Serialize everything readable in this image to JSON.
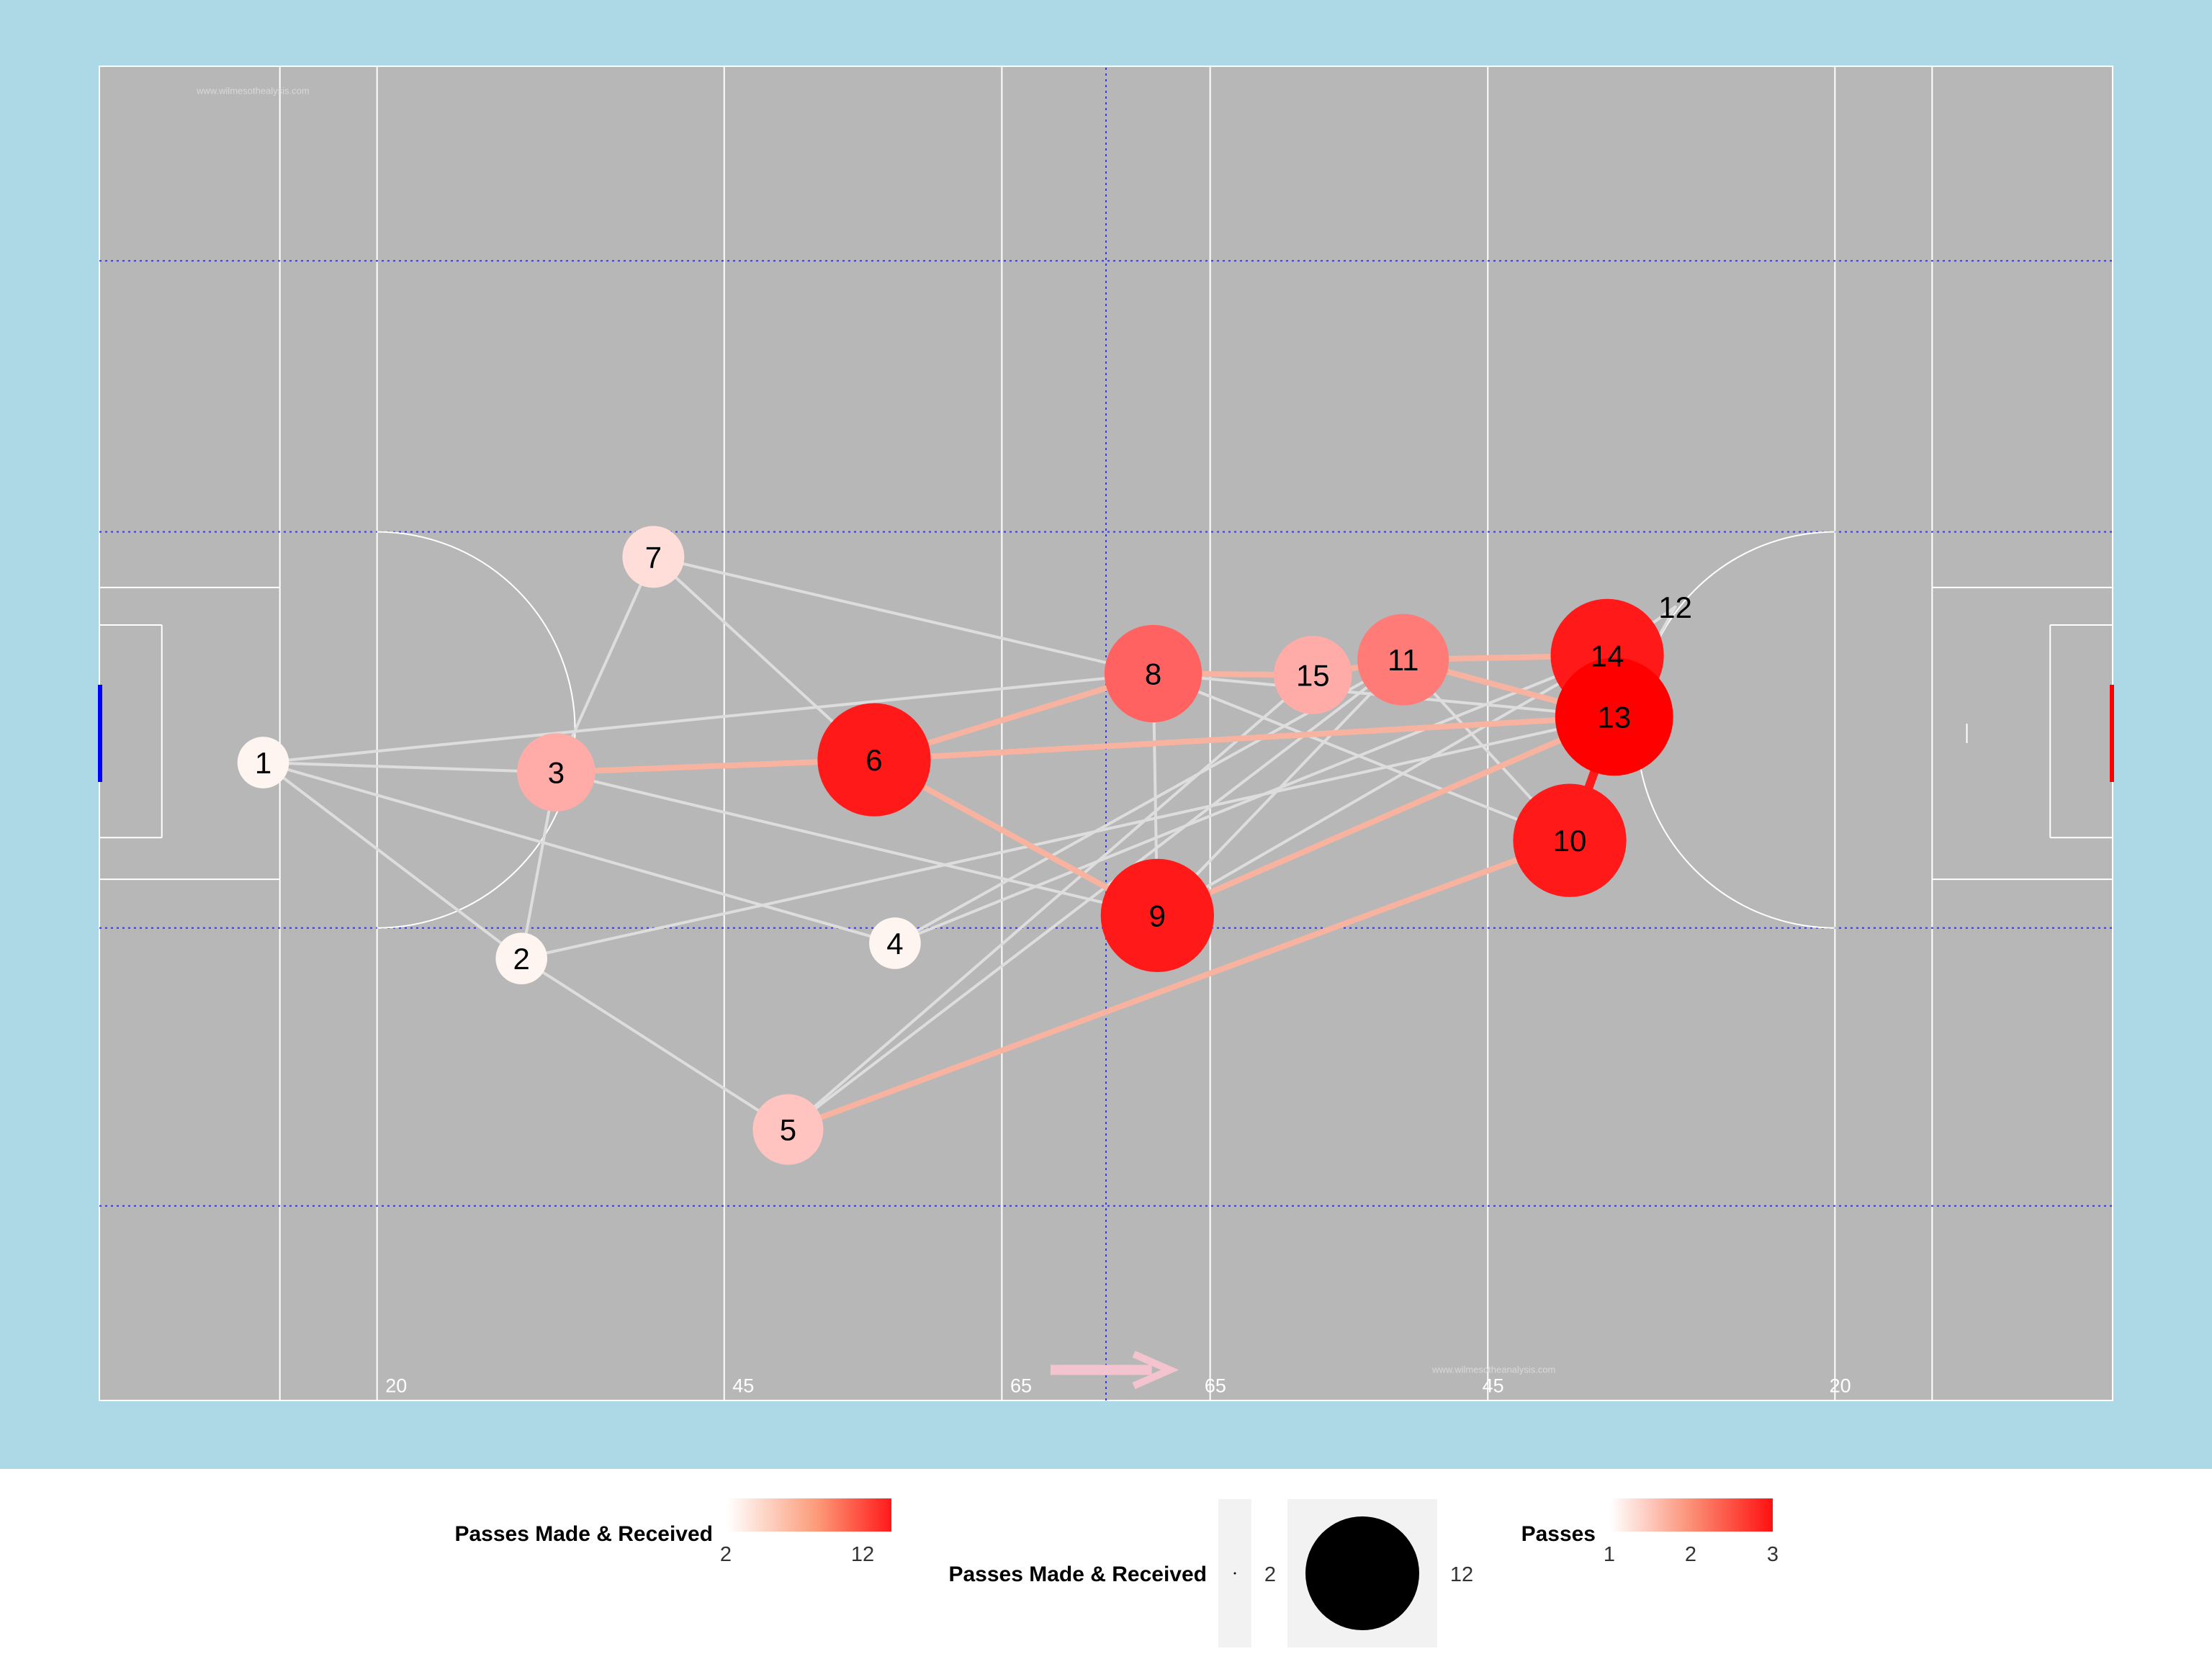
{
  "chart_data": {
    "type": "network",
    "background_color": "#add8e6",
    "pitch_color": "#b7b7b7",
    "attack_arrow_color": "#f3c4cf",
    "own_goal_color": "#0000ff",
    "opponent_goal_color": "#ff0000",
    "node_color_low": "#fff5f0",
    "node_color_high": "#ff0000",
    "edge_color_low": "#dddddd",
    "edge_color_high": "#ff1a1a",
    "watermark": "www.wilmesothealysis.com",
    "watermark_2": "www.wilmesotheanalysis.com",
    "yard_lines": {
      "left_20": "20",
      "left_45": "45",
      "left_65": "65",
      "right_65": "65",
      "right_45": "45",
      "right_20": "20"
    },
    "x_range": [
      0,
      145
    ],
    "y_range": [
      0,
      96
    ],
    "nodes": [
      {
        "id": "1",
        "x": 11.8,
        "y": 45.9,
        "passes_made_received": 2
      },
      {
        "id": "2",
        "x": 30.4,
        "y": 31.8,
        "passes_made_received": 2
      },
      {
        "id": "3",
        "x": 32.9,
        "y": 45.2,
        "passes_made_received": 5
      },
      {
        "id": "4",
        "x": 57.3,
        "y": 32.9,
        "passes_made_received": 2
      },
      {
        "id": "5",
        "x": 49.6,
        "y": 19.5,
        "passes_made_received": 4
      },
      {
        "id": "6",
        "x": 55.8,
        "y": 46.1,
        "passes_made_received": 11
      },
      {
        "id": "7",
        "x": 39.9,
        "y": 60.7,
        "passes_made_received": 3
      },
      {
        "id": "8",
        "x": 75.9,
        "y": 52.3,
        "passes_made_received": 8
      },
      {
        "id": "9",
        "x": 76.2,
        "y": 34.9,
        "passes_made_received": 11
      },
      {
        "id": "10",
        "x": 105.9,
        "y": 40.3,
        "passes_made_received": 11
      },
      {
        "id": "11",
        "x": 93.9,
        "y": 53.3,
        "passes_made_received": 7
      },
      {
        "id": "12",
        "x": 113.5,
        "y": 57.1,
        "passes_made_received": 0
      },
      {
        "id": "13",
        "x": 109.1,
        "y": 49.2,
        "passes_made_received": 12
      },
      {
        "id": "14",
        "x": 108.6,
        "y": 53.6,
        "passes_made_received": 11
      },
      {
        "id": "15",
        "x": 87.4,
        "y": 52.2,
        "passes_made_received": 5
      }
    ],
    "edges": [
      {
        "from": "1",
        "to": "3",
        "passes": 1
      },
      {
        "from": "1",
        "to": "2",
        "passes": 1
      },
      {
        "from": "1",
        "to": "4",
        "passes": 1
      },
      {
        "from": "1",
        "to": "8",
        "passes": 1
      },
      {
        "from": "2",
        "to": "3",
        "passes": 1
      },
      {
        "from": "2",
        "to": "5",
        "passes": 1
      },
      {
        "from": "2",
        "to": "13",
        "passes": 1
      },
      {
        "from": "3",
        "to": "7",
        "passes": 1
      },
      {
        "from": "3",
        "to": "6",
        "passes": 2
      },
      {
        "from": "3",
        "to": "9",
        "passes": 1
      },
      {
        "from": "6",
        "to": "7",
        "passes": 1
      },
      {
        "from": "6",
        "to": "8",
        "passes": 2
      },
      {
        "from": "6",
        "to": "9",
        "passes": 2
      },
      {
        "from": "6",
        "to": "13",
        "passes": 2
      },
      {
        "from": "7",
        "to": "8",
        "passes": 1
      },
      {
        "from": "8",
        "to": "9",
        "passes": 1
      },
      {
        "from": "8",
        "to": "15",
        "passes": 2
      },
      {
        "from": "8",
        "to": "10",
        "passes": 1
      },
      {
        "from": "8",
        "to": "13",
        "passes": 1
      },
      {
        "from": "15",
        "to": "11",
        "passes": 2
      },
      {
        "from": "11",
        "to": "14",
        "passes": 2
      },
      {
        "from": "11",
        "to": "13",
        "passes": 2
      },
      {
        "from": "11",
        "to": "10",
        "passes": 1
      },
      {
        "from": "11",
        "to": "9",
        "passes": 1
      },
      {
        "from": "11",
        "to": "5",
        "passes": 1
      },
      {
        "from": "4",
        "to": "14",
        "passes": 1
      },
      {
        "from": "4",
        "to": "11",
        "passes": 1
      },
      {
        "from": "5",
        "to": "15",
        "passes": 1
      },
      {
        "from": "5",
        "to": "10",
        "passes": 2
      },
      {
        "from": "9",
        "to": "14",
        "passes": 1
      },
      {
        "from": "9",
        "to": "13",
        "passes": 2
      },
      {
        "from": "13",
        "to": "10",
        "passes": 3
      },
      {
        "from": "13",
        "to": "14",
        "passes": 1
      },
      {
        "from": "13",
        "to": "12",
        "passes": 1
      },
      {
        "from": "14",
        "to": "12",
        "passes": 1
      }
    ],
    "legend": {
      "color_nodes": {
        "title": "Passes Made & Received",
        "labels": [
          "2",
          "12"
        ]
      },
      "size_nodes": {
        "title": "Passes Made & Received",
        "labels": [
          "2",
          "12"
        ]
      },
      "color_edges": {
        "title": "Passes",
        "labels": [
          "1",
          "2",
          "3"
        ]
      }
    }
  }
}
